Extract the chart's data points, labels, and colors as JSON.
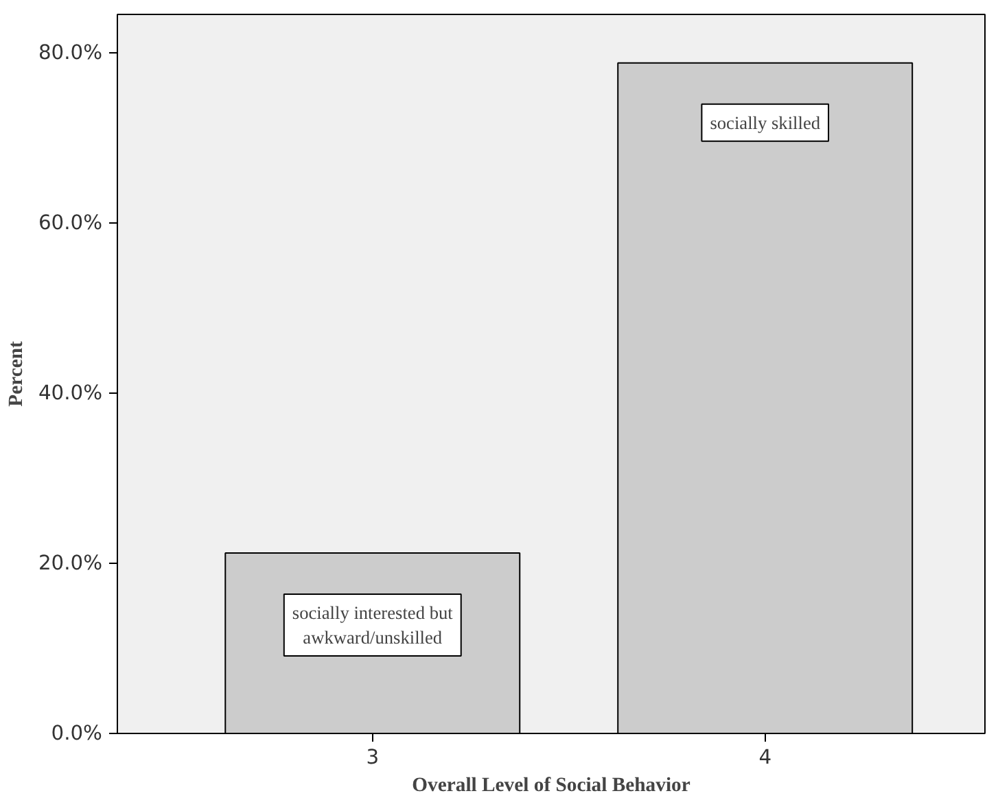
{
  "chart_data": {
    "type": "bar",
    "xlabel": "Overall Level of Social Behavior",
    "ylabel": "Percent",
    "categories": [
      "3",
      "4"
    ],
    "values": [
      21.2,
      78.8
    ],
    "color": "#cccccc",
    "ylim": [
      0,
      84.5
    ],
    "yticks": [
      {
        "value": 0,
        "label": "0.0%"
      },
      {
        "value": 20,
        "label": "20.0%"
      },
      {
        "value": 40,
        "label": "40.0%"
      },
      {
        "value": 60,
        "label": "60.0%"
      },
      {
        "value": 80,
        "label": "80.0%"
      }
    ],
    "annotations": [
      "socially interested but\nawkward/unskilled",
      "socially skilled"
    ],
    "grid": false
  }
}
